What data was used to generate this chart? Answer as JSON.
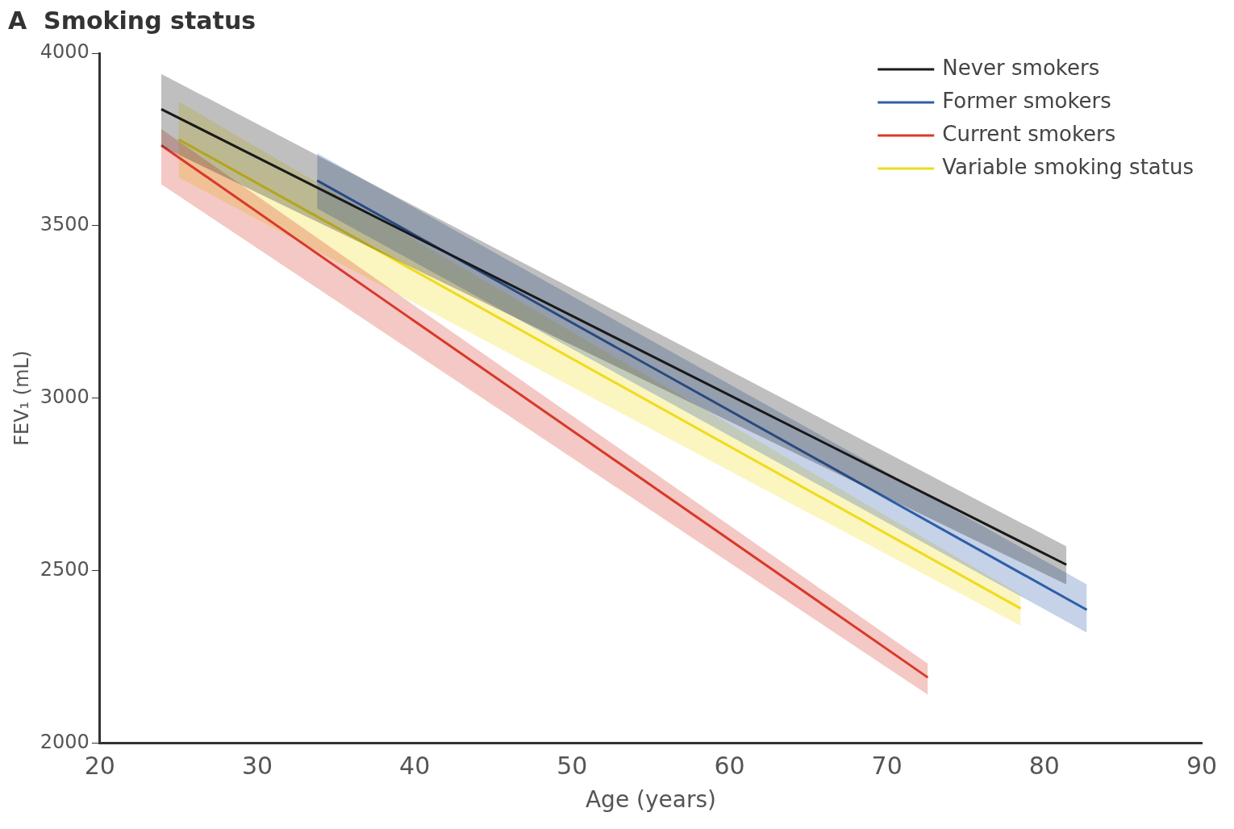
{
  "chart_data": {
    "type": "line",
    "title": "A  Smoking status",
    "xlabel": "Age (years)",
    "ylabel": "FEV₁ (mL)",
    "xlim": [
      20,
      90
    ],
    "xticks": [
      20,
      30,
      40,
      50,
      60,
      70,
      80,
      90
    ],
    "ylim": [
      2000,
      4000
    ],
    "yticks": [
      2000,
      2500,
      3000,
      3500,
      4000
    ],
    "grid": false,
    "legend": "top right",
    "marker": "none",
    "line_style": "solid",
    "series": [
      {
        "name": "Never smokers",
        "color": "#1a1a1a",
        "x": [
          23.9,
          81.4
        ],
        "values": [
          3838,
          2517
        ],
        "lower": [
          3730,
          2460
        ],
        "upper": [
          3940,
          2570
        ]
      },
      {
        "name": "Former smokers",
        "color": "#2e5fa8",
        "x": [
          33.8,
          82.7
        ],
        "values": [
          3631,
          2386
        ],
        "lower": [
          3550,
          2320
        ],
        "upper": [
          3710,
          2460
        ]
      },
      {
        "name": "Current smokers",
        "color": "#d93a2b",
        "x": [
          23.9,
          72.6
        ],
        "values": [
          3733,
          2190
        ],
        "lower": [
          3620,
          2140
        ],
        "upper": [
          3780,
          2230
        ]
      },
      {
        "name": "Variable smoking status",
        "color": "#f0dc1e",
        "x": [
          25.0,
          78.5
        ],
        "values": [
          3750,
          2390
        ],
        "lower": [
          3640,
          2340
        ],
        "upper": [
          3860,
          2430
        ]
      }
    ]
  }
}
